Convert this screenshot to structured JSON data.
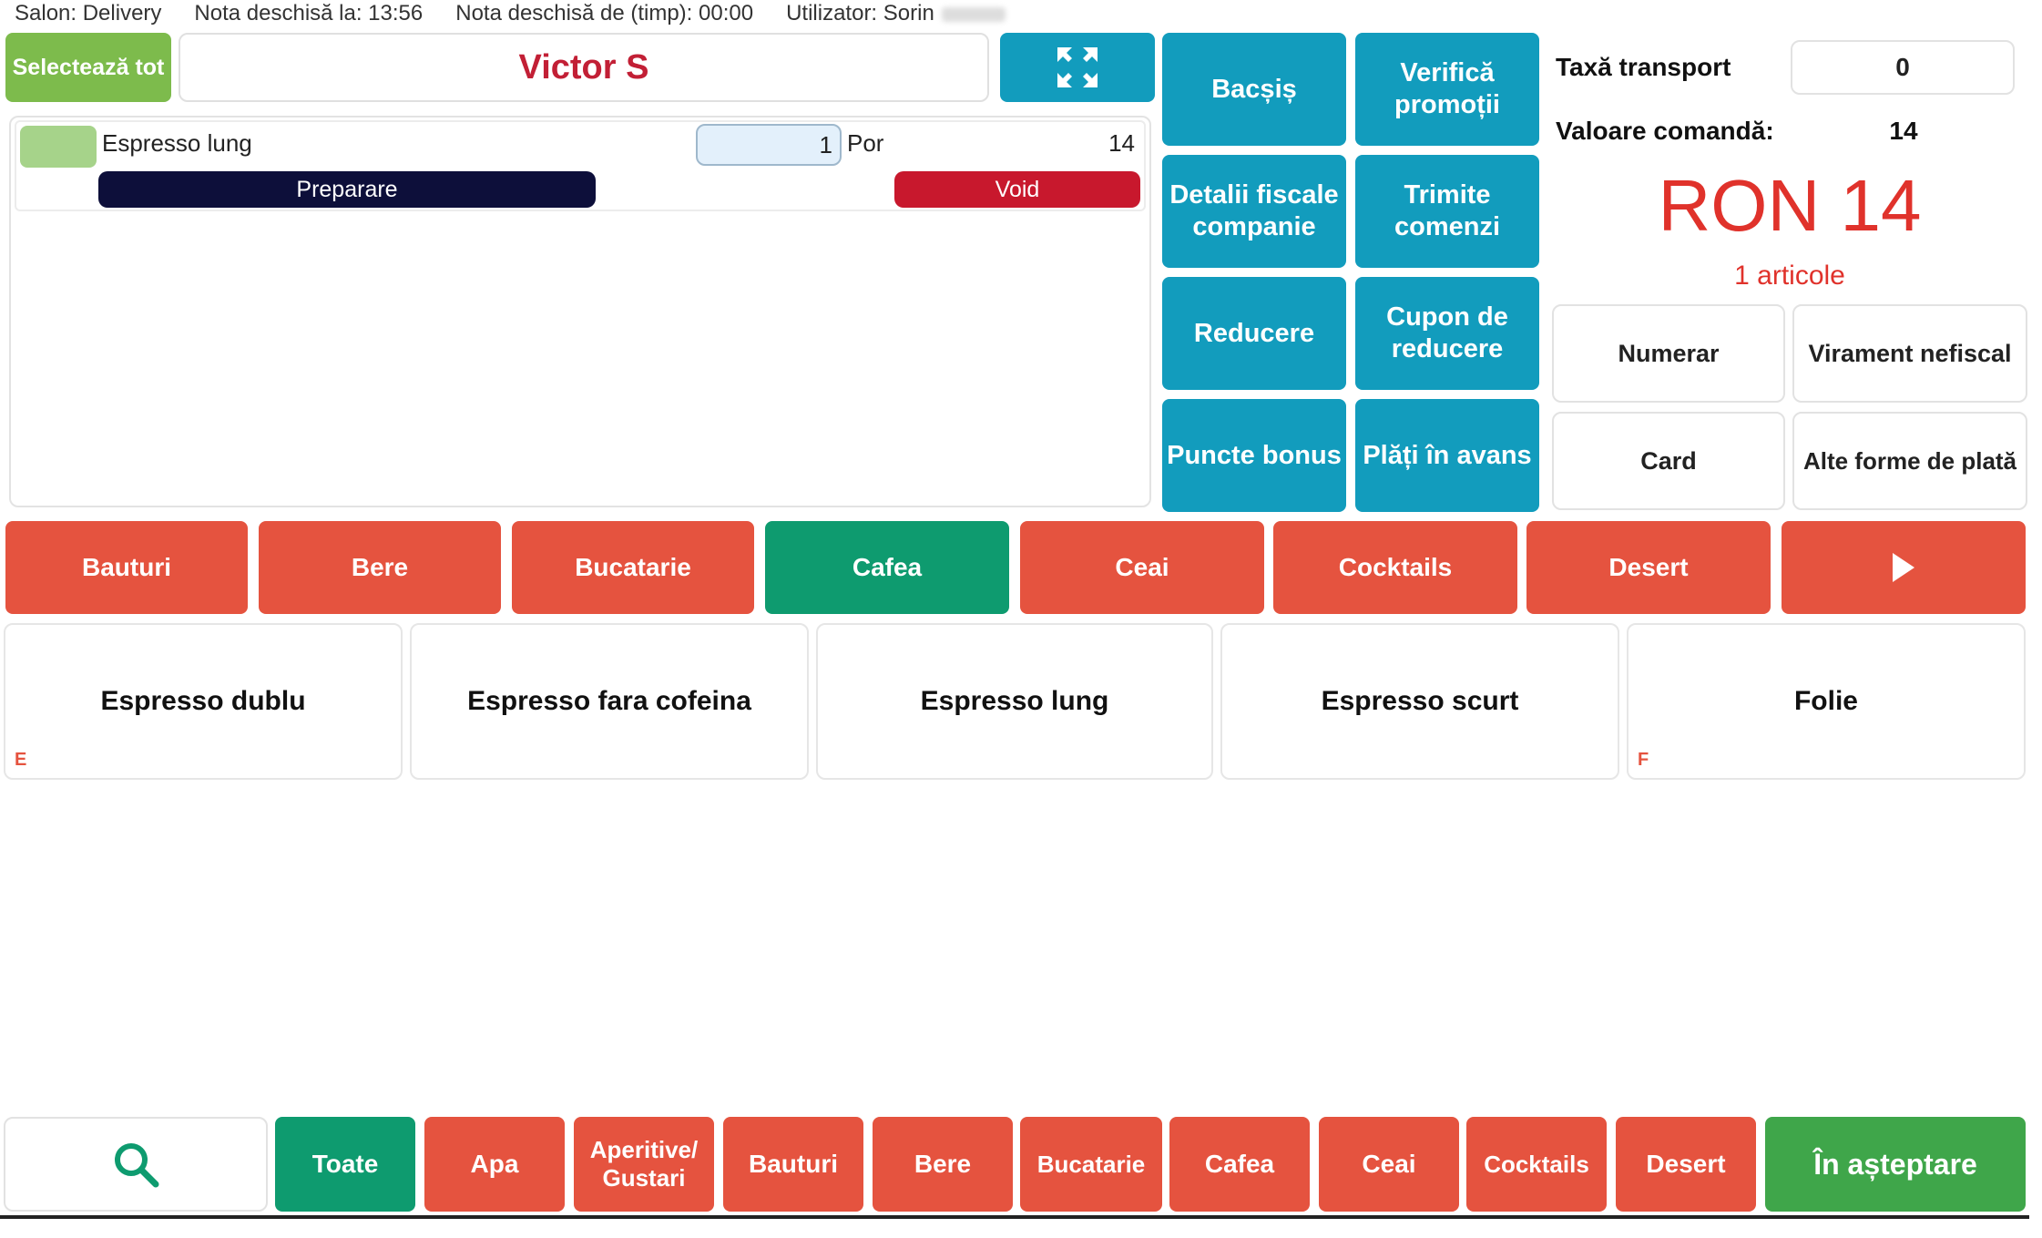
{
  "status_bar": {
    "salon": "Salon: Delivery",
    "opened_at": "Nota deschisă la: 13:56",
    "open_time": "Nota deschisă de (timp): 00:00",
    "user": "Utilizator: Sorin"
  },
  "header": {
    "select_all": "Selectează tot",
    "customer_name": "Victor S"
  },
  "order_item": {
    "name": "Espresso lung",
    "quantity": "1",
    "unit": "Por",
    "price": "14",
    "prepare": "Preparare",
    "void": "Void"
  },
  "actions": {
    "tip": "Bacșiș",
    "check_promos": "Verifică promoții",
    "fiscal_details": "Detalii fiscale companie",
    "send_orders": "Trimite comenzi",
    "discount": "Reducere",
    "coupon": "Cupon de reducere",
    "bonus_points": "Puncte bonus",
    "advance_payments": "Plăți în avans"
  },
  "summary": {
    "transport_label": "Taxă transport",
    "transport_value": "0",
    "order_value_label": "Valoare comandă:",
    "order_value": "14",
    "total": "RON 14",
    "items_count": "1 articole"
  },
  "payments": {
    "cash": "Numerar",
    "transfer": "Virament nefiscal",
    "card": "Card",
    "other": "Alte forme de plată"
  },
  "categories": [
    "Bauturi",
    "Bere",
    "Bucatarie",
    "Cafea",
    "Ceai",
    "Cocktails",
    "Desert"
  ],
  "products": [
    {
      "name": "Espresso dublu",
      "tag": "E"
    },
    {
      "name": "Espresso fara cofeina",
      "tag": ""
    },
    {
      "name": "Espresso lung",
      "tag": ""
    },
    {
      "name": "Espresso scurt",
      "tag": ""
    },
    {
      "name": "Folie",
      "tag": "F"
    }
  ],
  "bottom_bar": {
    "all": "Toate",
    "categories": [
      "Apa",
      "Aperitive/ Gustari",
      "Bauturi",
      "Bere",
      "Bucatarie",
      "Cafea",
      "Ceai",
      "Cocktails",
      "Desert"
    ],
    "on_hold": "În așteptare"
  },
  "colors": {
    "accent_teal": "#129cbd",
    "category_red": "#e5533f",
    "active_green": "#0e9b6f",
    "total_red": "#e0322b"
  }
}
